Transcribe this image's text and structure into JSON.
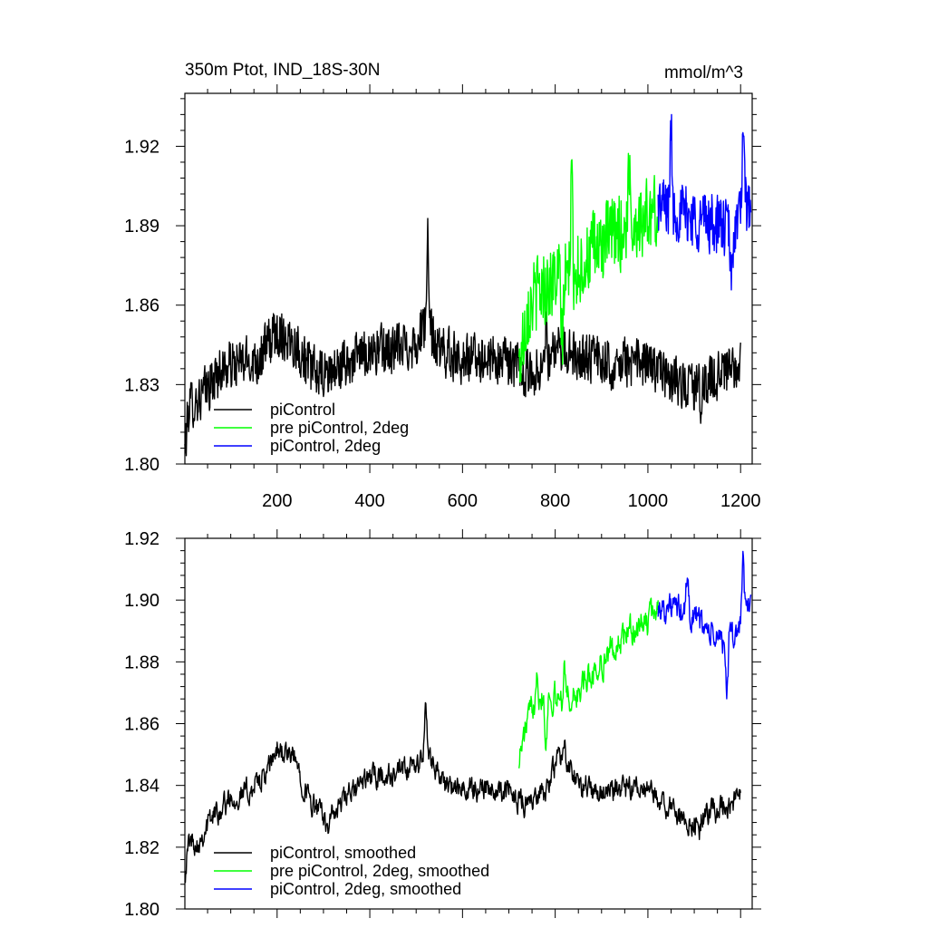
{
  "figure": {
    "title_left": "350m Ptot, IND_18S-30N",
    "title_right": "mmol/m^3"
  },
  "chart_data": [
    {
      "type": "line",
      "title": "350m Ptot, IND_18S-30N",
      "units": "mmol/m^3",
      "xlim": [
        1,
        1225
      ],
      "ylim": [
        1.8,
        1.94
      ],
      "x_ticks": [
        200,
        400,
        600,
        800,
        1000,
        1200
      ],
      "x_tick_labels": [
        "200",
        "400",
        "600",
        "800",
        "1000",
        "1200"
      ],
      "y_ticks": [
        1.8,
        1.83,
        1.86,
        1.89,
        1.92
      ],
      "y_tick_labels": [
        "1.80",
        "1.83",
        "1.86",
        "1.89",
        "1.92"
      ],
      "legend_position": "bottom-left",
      "series": [
        {
          "name": "piControl",
          "color": "#000000",
          "x_range": [
            1,
            1200
          ],
          "noise": 0.009,
          "anchors": [
            [
              1,
              1.805
            ],
            [
              10,
              1.822
            ],
            [
              40,
              1.826
            ],
            [
              80,
              1.836
            ],
            [
              120,
              1.838
            ],
            [
              160,
              1.84
            ],
            [
              200,
              1.85
            ],
            [
              240,
              1.846
            ],
            [
              270,
              1.836
            ],
            [
              300,
              1.833
            ],
            [
              350,
              1.838
            ],
            [
              400,
              1.843
            ],
            [
              450,
              1.843
            ],
            [
              500,
              1.846
            ],
            [
              520,
              1.853
            ],
            [
              550,
              1.843
            ],
            [
              600,
              1.84
            ],
            [
              650,
              1.84
            ],
            [
              700,
              1.838
            ],
            [
              750,
              1.834
            ],
            [
              800,
              1.842
            ],
            [
              850,
              1.842
            ],
            [
              900,
              1.838
            ],
            [
              950,
              1.838
            ],
            [
              1000,
              1.838
            ],
            [
              1050,
              1.832
            ],
            [
              1100,
              1.828
            ],
            [
              1150,
              1.834
            ],
            [
              1200,
              1.836
            ]
          ],
          "spikes": [
            [
              525,
              1.884
            ],
            [
              730,
              1.829
            ],
            [
              780,
              1.857
            ],
            [
              1115,
              1.819
            ]
          ]
        },
        {
          "name": "pre piControl, 2deg",
          "color": "#00ff00",
          "x_range": [
            722,
            1022
          ],
          "noise": 0.014,
          "anchors": [
            [
              722,
              1.836
            ],
            [
              740,
              1.86
            ],
            [
              780,
              1.868
            ],
            [
              820,
              1.87
            ],
            [
              860,
              1.876
            ],
            [
              900,
              1.883
            ],
            [
              940,
              1.888
            ],
            [
              980,
              1.892
            ],
            [
              1022,
              1.895
            ]
          ],
          "spikes": [
            [
              835,
              1.908
            ],
            [
              960,
              1.915
            ],
            [
              815,
              1.843
            ]
          ]
        },
        {
          "name": "piControl, 2deg",
          "color": "#0000ff",
          "x_range": [
            1022,
            1222
          ],
          "noise": 0.011,
          "anchors": [
            [
              1022,
              1.898
            ],
            [
              1060,
              1.896
            ],
            [
              1100,
              1.893
            ],
            [
              1140,
              1.891
            ],
            [
              1180,
              1.888
            ],
            [
              1222,
              1.899
            ]
          ],
          "spikes": [
            [
              1050,
              1.928
            ],
            [
              1180,
              1.865
            ],
            [
              1205,
              1.926
            ]
          ]
        }
      ]
    },
    {
      "type": "line",
      "title": "",
      "xlim": [
        1,
        1225
      ],
      "ylim": [
        1.8,
        1.92
      ],
      "x_ticks": [
        200,
        400,
        600,
        800,
        1000,
        1200
      ],
      "x_tick_labels": [],
      "y_ticks": [
        1.8,
        1.82,
        1.84,
        1.86,
        1.88,
        1.9,
        1.92
      ],
      "y_tick_labels": [
        "1.80",
        "1.82",
        "1.84",
        "1.86",
        "1.88",
        "1.90",
        "1.92"
      ],
      "legend_position": "bottom-left",
      "series": [
        {
          "name": "piControl, smoothed",
          "color": "#000000",
          "x_range": [
            1,
            1200
          ],
          "noise": 0.005,
          "anchors": [
            [
              1,
              1.812
            ],
            [
              10,
              1.822
            ],
            [
              30,
              1.822
            ],
            [
              60,
              1.83
            ],
            [
              100,
              1.836
            ],
            [
              140,
              1.838
            ],
            [
              180,
              1.844
            ],
            [
              200,
              1.852
            ],
            [
              240,
              1.848
            ],
            [
              270,
              1.835
            ],
            [
              310,
              1.828
            ],
            [
              350,
              1.836
            ],
            [
              400,
              1.843
            ],
            [
              450,
              1.843
            ],
            [
              500,
              1.846
            ],
            [
              525,
              1.852
            ],
            [
              560,
              1.84
            ],
            [
              600,
              1.838
            ],
            [
              650,
              1.84
            ],
            [
              700,
              1.838
            ],
            [
              740,
              1.834
            ],
            [
              780,
              1.838
            ],
            [
              810,
              1.85
            ],
            [
              850,
              1.84
            ],
            [
              900,
              1.838
            ],
            [
              950,
              1.838
            ],
            [
              1000,
              1.838
            ],
            [
              1050,
              1.832
            ],
            [
              1100,
              1.828
            ],
            [
              1150,
              1.832
            ],
            [
              1200,
              1.836
            ]
          ],
          "spikes": [
            [
              520,
              1.866
            ],
            [
              820,
              1.858
            ],
            [
              1110,
              1.823
            ]
          ]
        },
        {
          "name": "pre piControl, 2deg, smoothed",
          "color": "#00ff00",
          "x_range": [
            722,
            1022
          ],
          "noise": 0.006,
          "anchors": [
            [
              722,
              1.849
            ],
            [
              740,
              1.86
            ],
            [
              760,
              1.87
            ],
            [
              800,
              1.868
            ],
            [
              840,
              1.868
            ],
            [
              880,
              1.876
            ],
            [
              920,
              1.883
            ],
            [
              960,
              1.89
            ],
            [
              1000,
              1.893
            ],
            [
              1022,
              1.898
            ]
          ],
          "spikes": [
            [
              760,
              1.881
            ],
            [
              820,
              1.882
            ],
            [
              780,
              1.852
            ]
          ]
        },
        {
          "name": "piControl, 2deg, smoothed",
          "color": "#0000ff",
          "x_range": [
            1022,
            1222
          ],
          "noise": 0.006,
          "anchors": [
            [
              1022,
              1.898
            ],
            [
              1060,
              1.897
            ],
            [
              1100,
              1.895
            ],
            [
              1140,
              1.888
            ],
            [
              1180,
              1.886
            ],
            [
              1222,
              1.9
            ]
          ],
          "spikes": [
            [
              1085,
              1.909
            ],
            [
              1170,
              1.869
            ],
            [
              1205,
              1.916
            ]
          ]
        }
      ]
    }
  ]
}
